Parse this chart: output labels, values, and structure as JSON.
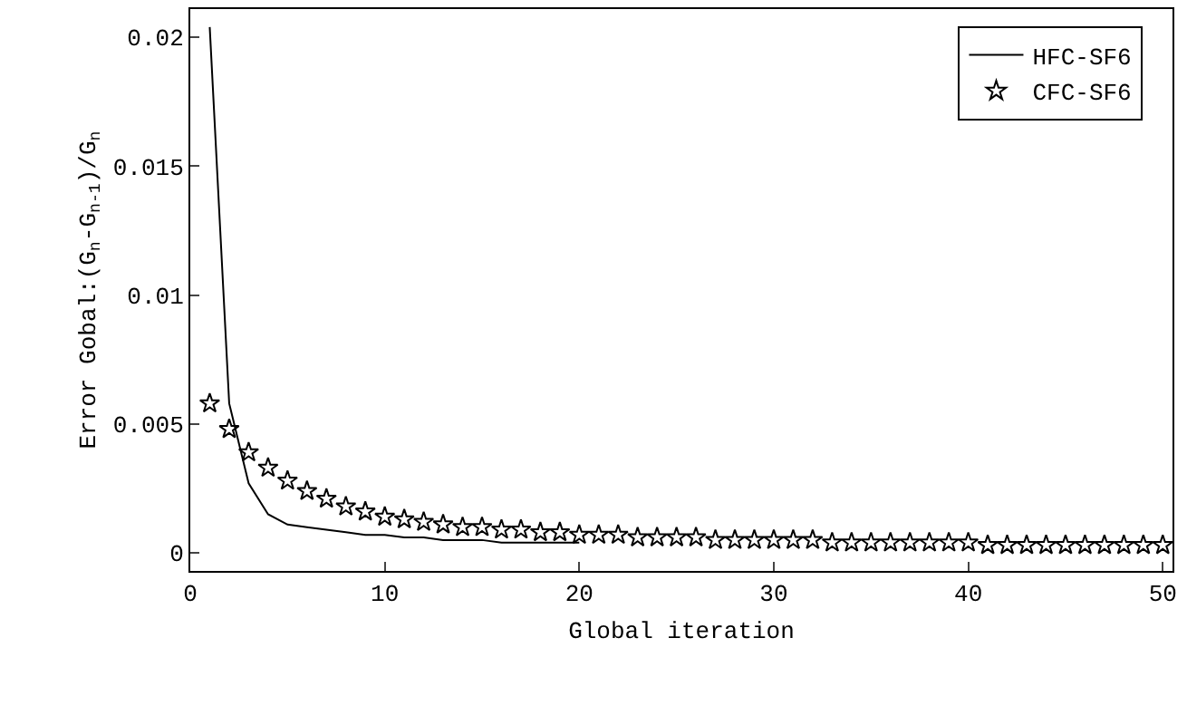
{
  "chart_data": {
    "type": "line",
    "xlabel": "Global iteration",
    "ylabel": "Error Gobal:(G$_{n}$-G$_{n-1}$)/G$_{n}$",
    "xlim": [
      0,
      50.5
    ],
    "ylim": [
      -0.0007,
      0.0211
    ],
    "xticks": [
      0,
      10,
      20,
      30,
      40,
      50
    ],
    "yticks": [
      0,
      0.005,
      0.01,
      0.015,
      0.02
    ],
    "grid": false,
    "legend": "top right",
    "series": [
      {
        "name": "HFC-SF6",
        "marker": "none",
        "line_style": "solid",
        "color": "#000000",
        "x": [
          1,
          2,
          3,
          4,
          5,
          6,
          7,
          8,
          9,
          10,
          11,
          12,
          13,
          14,
          15,
          16,
          17,
          18,
          19,
          20
        ],
        "values": [
          0.0204,
          0.0058,
          0.0027,
          0.0015,
          0.0011,
          0.001,
          0.0009,
          0.0008,
          0.0007,
          0.0007,
          0.0006,
          0.0006,
          0.0005,
          0.0005,
          0.0005,
          0.0004,
          0.0004,
          0.0004,
          0.0004,
          0.0004
        ]
      },
      {
        "name": "CFC-SF6",
        "type": "scatter",
        "marker": "star",
        "color": "#000000",
        "x": [
          1,
          2,
          3,
          4,
          5,
          6,
          7,
          8,
          9,
          10,
          11,
          12,
          13,
          14,
          15,
          16,
          17,
          18,
          19,
          20,
          21,
          22,
          23,
          24,
          25,
          26,
          27,
          28,
          29,
          30,
          31,
          32,
          33,
          34,
          35,
          36,
          37,
          38,
          39,
          40,
          41,
          42,
          43,
          44,
          45,
          46,
          47,
          48,
          49,
          50
        ],
        "values": [
          0.0058,
          0.0048,
          0.0039,
          0.0033,
          0.0028,
          0.0024,
          0.0021,
          0.0018,
          0.0016,
          0.0014,
          0.0013,
          0.0012,
          0.0011,
          0.001,
          0.001,
          0.0009,
          0.0009,
          0.0008,
          0.0008,
          0.0007,
          0.0007,
          0.0007,
          0.0006,
          0.0006,
          0.0006,
          0.0006,
          0.0005,
          0.0005,
          0.0005,
          0.0005,
          0.0005,
          0.0005,
          0.0004,
          0.0004,
          0.0004,
          0.0004,
          0.0004,
          0.0004,
          0.0004,
          0.0004,
          0.0003,
          0.0003,
          0.0003,
          0.0003,
          0.0003,
          0.0003,
          0.0003,
          0.0003,
          0.0003,
          0.0003
        ]
      }
    ]
  }
}
